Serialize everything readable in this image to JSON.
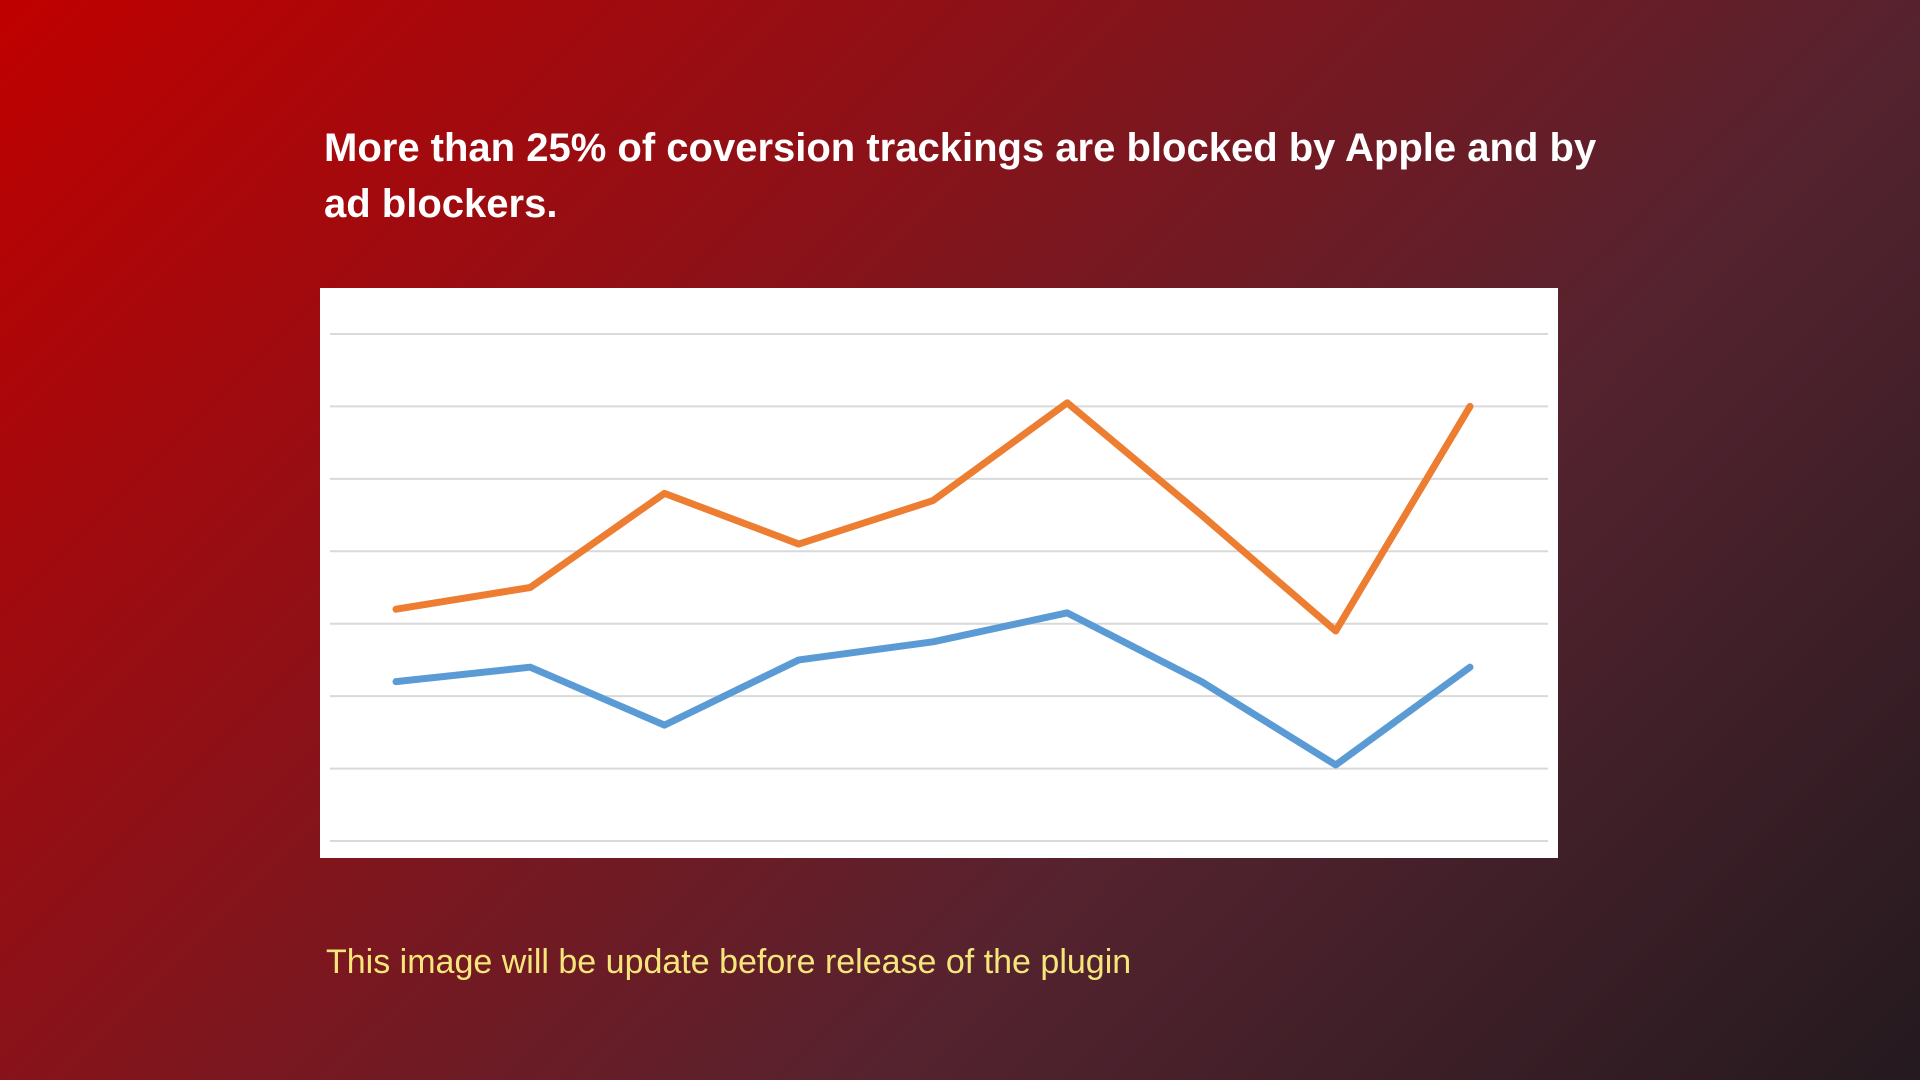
{
  "headline": "More than 25% of coversion trackings are blocked by Apple and by ad blockers.",
  "footnote": "This image will be update before release of the plugin",
  "chart_data": {
    "type": "line",
    "title": "",
    "xlabel": "",
    "ylabel": "",
    "x": [
      1,
      2,
      3,
      4,
      5,
      6,
      7,
      8,
      9
    ],
    "ylim": [
      0,
      7
    ],
    "gridlines": [
      0,
      1,
      2,
      3,
      4,
      5,
      6,
      7
    ],
    "grid": true,
    "legend": false,
    "series": [
      {
        "color": "#5b9bd5",
        "values": [
          2.2,
          2.4,
          1.6,
          2.5,
          2.75,
          3.15,
          2.2,
          1.05,
          2.4
        ]
      },
      {
        "color": "#ed7d31",
        "values": [
          3.2,
          3.5,
          4.8,
          4.1,
          4.7,
          6.05,
          4.5,
          2.9,
          6.0
        ]
      }
    ]
  }
}
